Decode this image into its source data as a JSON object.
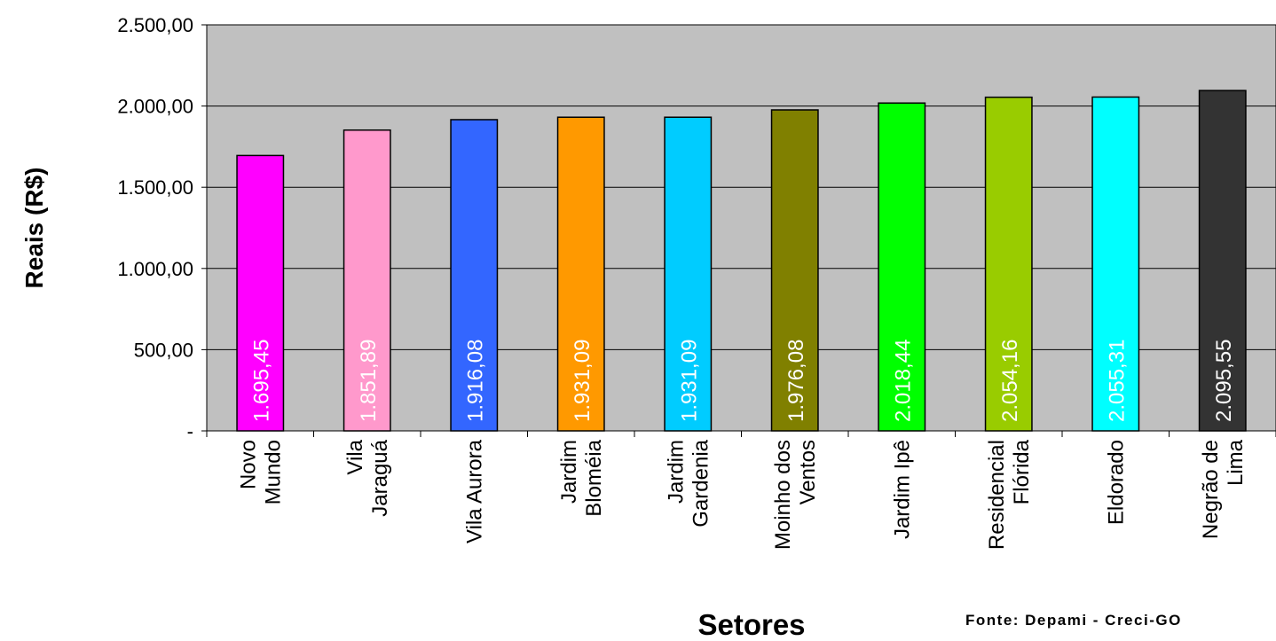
{
  "chart_data": {
    "type": "bar",
    "xlabel": "Setores",
    "ylabel": "Reais (R$)",
    "ylim": [
      0,
      2500
    ],
    "yticks": [
      "-",
      "500,00",
      "1.000,00",
      "1.500,00",
      "2.000,00",
      "2.500,00"
    ],
    "grid": true,
    "plot_background": "#c0c0c0",
    "categories": [
      [
        "Novo",
        "Mundo"
      ],
      [
        "Vila",
        "Jaraguá"
      ],
      [
        "Vila Aurora"
      ],
      [
        "Jardim",
        "Bloméia"
      ],
      [
        "Jardim",
        "Gardenia"
      ],
      [
        "Moinho dos",
        "Ventos"
      ],
      [
        "Jardim Ipê"
      ],
      [
        "Residencial",
        "Flórida"
      ],
      [
        "Eldorado"
      ],
      [
        "Negrão de",
        "Lima"
      ]
    ],
    "values": [
      1695.45,
      1851.89,
      1916.08,
      1931.09,
      1931.09,
      1976.08,
      2018.44,
      2054.16,
      2055.31,
      2095.55
    ],
    "data_labels": [
      "1.695,45",
      "1.851,89",
      "1.916,08",
      "1.931,09",
      "1.931,09",
      "1.976,08",
      "2.018,44",
      "2.054,16",
      "2.055,31",
      "2.095,55"
    ],
    "colors": [
      "#ff00ff",
      "#ff99cc",
      "#3366ff",
      "#ff9900",
      "#00ccff",
      "#808000",
      "#00ff00",
      "#99cc00",
      "#00ffff",
      "#333333"
    ]
  },
  "source": "Fonte: Depami - Creci-GO"
}
